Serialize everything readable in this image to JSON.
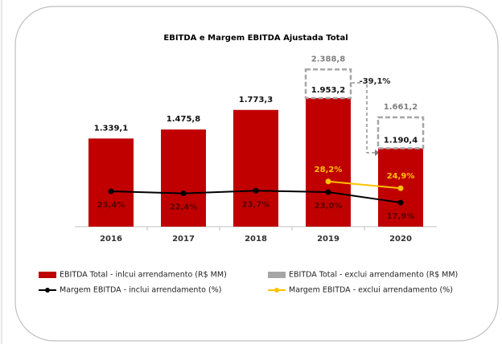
{
  "chart_data": {
    "type": "bar",
    "title": "EBITDA e Margem EBITDA Ajustada Total",
    "categories": [
      "2016",
      "2017",
      "2018",
      "2019",
      "2020"
    ],
    "series": [
      {
        "name": "EBITDA Total - inlcui arrendamento (R$ MM)",
        "type": "bar",
        "color": "#c00000",
        "values": [
          1339.1,
          1475.8,
          1773.3,
          1953.2,
          1190.4
        ],
        "value_labels": [
          "1.339,1",
          "1.475,8",
          "1.773,3",
          "1.953,2",
          "1.190,4"
        ]
      },
      {
        "name": "EBITDA Total - exclui arrendamento (R$ MM)",
        "type": "bar",
        "style": "dashed",
        "color": "#a6a6a6",
        "values": [
          null,
          null,
          null,
          2388.8,
          1661.2
        ],
        "value_labels": [
          null,
          null,
          null,
          "2.388,8",
          "1.661,2"
        ]
      },
      {
        "name": "Margem EBITDA - inclui arrendamento (%)",
        "type": "line",
        "color": "#000000",
        "values": [
          23.4,
          22.4,
          23.7,
          23.0,
          17.9
        ],
        "value_labels": [
          "23,4%",
          "22,4%",
          "23,7%",
          "23,0%",
          "17,9%"
        ]
      },
      {
        "name": "Margem EBITDA - exclui arrendamento (%)",
        "type": "line",
        "color": "#ffc000",
        "values": [
          null,
          null,
          null,
          28.2,
          24.9
        ],
        "value_labels": [
          null,
          null,
          null,
          "28,2%",
          "24,9%"
        ]
      }
    ],
    "annotations": [
      {
        "text": "-39,1%"
      }
    ]
  }
}
